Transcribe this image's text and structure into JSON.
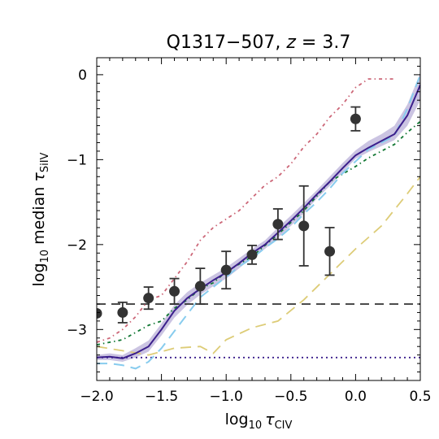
{
  "chart_data": {
    "type": "line",
    "title": "Q1317−507, z = 3.7",
    "title_parts": {
      "name": "Q1317−507, ",
      "z": "z",
      "eq": " = 3.7"
    },
    "xlabel": "log10 τCIV",
    "xlabel_parts": {
      "log": "log",
      "sub": "10",
      "tau": "τ",
      "tau_sub": "CIV"
    },
    "ylabel": "log10 median τSiIV",
    "ylabel_parts": {
      "log": "log",
      "sub": "10",
      "rest": " median ",
      "tau": "τ",
      "tau_sub": "SiIV"
    },
    "xlim": [
      -2.0,
      0.5
    ],
    "ylim": [
      -3.6,
      0.2
    ],
    "xticks": [
      -2.0,
      -1.5,
      -1.0,
      -0.5,
      0.0,
      0.5
    ],
    "xtick_labels": [
      "−2.0",
      "−1.5",
      "−1.0",
      "−0.5",
      "0.0",
      "0.5"
    ],
    "yticks": [
      0,
      -1,
      -2,
      -3
    ],
    "ytick_labels": [
      "0",
      "−1",
      "−2",
      "−3"
    ],
    "grid": false,
    "colors": {
      "solid": "#3b1f8c",
      "band": "#b9b0d8",
      "dashdot_red": "#cc6677",
      "dashdot_green": "#117733",
      "dashed_blue": "#88ccee",
      "dashed_yellow": "#ddcc77",
      "points": "#333333",
      "hline": "#333333"
    },
    "hlines": [
      {
        "y": -2.7,
        "style": "dashed"
      },
      {
        "y": -3.33,
        "style": "dotted"
      }
    ],
    "series": [
      {
        "style": "solid",
        "x": [
          -2.0,
          -1.9,
          -1.8,
          -1.7,
          -1.6,
          -1.5,
          -1.4,
          -1.3,
          -1.2,
          -1.1,
          -1.0,
          -0.9,
          -0.8,
          -0.7,
          -0.6,
          -0.5,
          -0.4,
          -0.3,
          -0.2,
          -0.1,
          0.0,
          0.1,
          0.2,
          0.3,
          0.4,
          0.5
        ],
        "y": [
          -3.33,
          -3.32,
          -3.34,
          -3.28,
          -3.2,
          -3.0,
          -2.78,
          -2.63,
          -2.52,
          -2.42,
          -2.33,
          -2.22,
          -2.1,
          -2.0,
          -1.86,
          -1.72,
          -1.57,
          -1.41,
          -1.26,
          -1.1,
          -0.95,
          -0.86,
          -0.78,
          -0.7,
          -0.48,
          -0.12
        ],
        "band_lo": [
          -3.36,
          -3.36,
          -3.38,
          -3.33,
          -3.26,
          -3.07,
          -2.86,
          -2.71,
          -2.59,
          -2.49,
          -2.4,
          -2.28,
          -2.15,
          -2.05,
          -1.92,
          -1.78,
          -1.63,
          -1.46,
          -1.31,
          -1.15,
          -0.99,
          -0.91,
          -0.84,
          -0.77,
          -0.6,
          -0.3
        ],
        "band_hi": [
          -3.3,
          -3.28,
          -3.3,
          -3.22,
          -3.13,
          -2.93,
          -2.71,
          -2.56,
          -2.45,
          -2.36,
          -2.27,
          -2.16,
          -2.05,
          -1.95,
          -1.8,
          -1.66,
          -1.51,
          -1.36,
          -1.2,
          -1.04,
          -0.89,
          -0.78,
          -0.7,
          -0.6,
          -0.35,
          0.02
        ]
      },
      {
        "style": "dashed_blue",
        "x": [
          -2.0,
          -1.9,
          -1.8,
          -1.7,
          -1.6,
          -1.5,
          -1.4,
          -1.3,
          -1.2,
          -1.1,
          -1.0,
          -0.9,
          -0.8,
          -0.7,
          -0.6,
          -0.5,
          -0.4,
          -0.3,
          -0.2,
          -0.1,
          0.0,
          0.1,
          0.2,
          0.3,
          0.4,
          0.5
        ],
        "y": [
          -3.4,
          -3.4,
          -3.42,
          -3.46,
          -3.38,
          -3.22,
          -3.02,
          -2.82,
          -2.62,
          -2.5,
          -2.38,
          -2.26,
          -2.16,
          -2.04,
          -1.93,
          -1.8,
          -1.64,
          -1.5,
          -1.34,
          -1.16,
          -1.02,
          -0.88,
          -0.8,
          -0.72,
          -0.4,
          0.0
        ]
      },
      {
        "style": "dashdot_green",
        "x": [
          -2.0,
          -1.8,
          -1.6,
          -1.5,
          -1.4,
          -1.3,
          -1.2,
          -1.1,
          -1.0,
          -0.8,
          -0.6,
          -0.4,
          -0.2,
          0.0,
          0.1,
          0.2,
          0.3,
          0.4,
          0.5
        ],
        "y": [
          -3.18,
          -3.12,
          -2.95,
          -2.9,
          -2.75,
          -2.65,
          -2.52,
          -2.45,
          -2.32,
          -2.14,
          -1.88,
          -1.6,
          -1.26,
          -1.08,
          -0.98,
          -0.9,
          -0.82,
          -0.68,
          -0.55
        ]
      },
      {
        "style": "dashdot_red",
        "x": [
          -2.0,
          -1.9,
          -1.8,
          -1.7,
          -1.6,
          -1.5,
          -1.4,
          -1.3,
          -1.2,
          -1.1,
          -1.0,
          -0.9,
          -0.8,
          -0.7,
          -0.6,
          -0.5,
          -0.4,
          -0.3,
          -0.2,
          -0.1,
          0.0,
          0.1,
          0.2,
          0.3
        ],
        "y": [
          -3.15,
          -3.1,
          -3.0,
          -2.85,
          -2.65,
          -2.6,
          -2.4,
          -2.2,
          -1.95,
          -1.8,
          -1.7,
          -1.6,
          -1.45,
          -1.3,
          -1.2,
          -1.05,
          -0.85,
          -0.7,
          -0.5,
          -0.35,
          -0.15,
          -0.05,
          -0.05,
          -0.05
        ]
      },
      {
        "style": "dashed_yellow",
        "x": [
          -2.0,
          -1.8,
          -1.6,
          -1.4,
          -1.2,
          -1.1,
          -1.0,
          -0.8,
          -0.6,
          -0.4,
          -0.2,
          0.0,
          0.2,
          0.4,
          0.5
        ],
        "y": [
          -3.2,
          -3.25,
          -3.3,
          -3.22,
          -3.2,
          -3.28,
          -3.12,
          -2.98,
          -2.9,
          -2.65,
          -2.35,
          -2.05,
          -1.78,
          -1.4,
          -1.2
        ]
      }
    ],
    "points": {
      "x": [
        -2.0,
        -1.8,
        -1.6,
        -1.4,
        -1.2,
        -1.0,
        -0.8,
        -0.6,
        -0.4,
        -0.2,
        0.0
      ],
      "y": [
        -2.81,
        -2.8,
        -2.63,
        -2.55,
        -2.49,
        -2.3,
        -2.12,
        -1.76,
        -1.78,
        -2.08,
        -0.52
      ],
      "err": [
        0.0,
        0.12,
        0.13,
        0.15,
        0.21,
        0.22,
        0.11,
        0.18,
        0.47,
        0.28,
        0.14
      ]
    }
  }
}
